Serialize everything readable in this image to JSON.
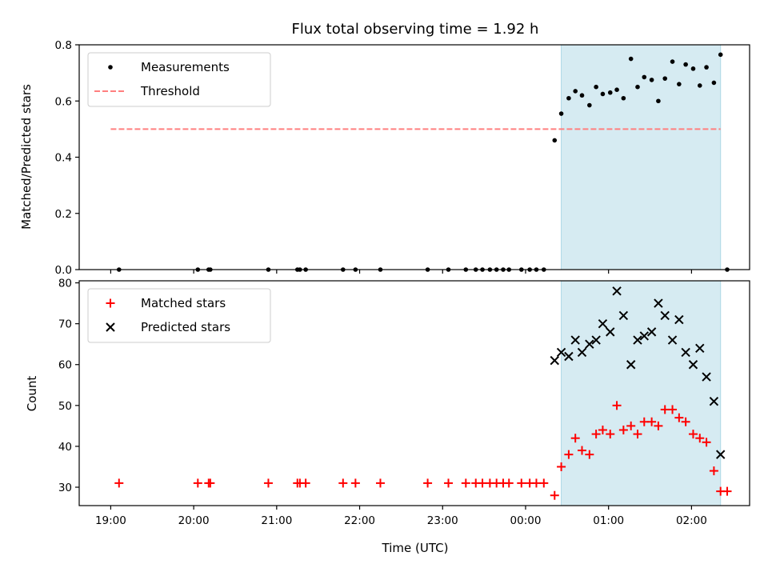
{
  "chart_data": [
    {
      "type": "scatter",
      "title": "Flux total observing time = 1.92 h",
      "xlabel": "",
      "ylabel": "Matched/Predicted stars",
      "ylim": [
        0,
        0.8
      ],
      "yticks": [
        "0.0",
        "0.2",
        "0.4",
        "0.6",
        "0.8"
      ],
      "xlim": [
        -0.38,
        7.7
      ],
      "legend_placement": "upper-left",
      "grid": false,
      "highlight_band": {
        "x": [
          5.43,
          7.35
        ],
        "color": "#add8e6"
      },
      "series": [
        {
          "name": "Measurements",
          "marker": "dot",
          "color": "#000000",
          "x": [
            0.1,
            1.05,
            1.18,
            1.2,
            1.9,
            2.25,
            2.28,
            2.35,
            2.8,
            2.95,
            3.25,
            3.82,
            4.07,
            4.28,
            4.4,
            4.48,
            4.57,
            4.65,
            4.73,
            4.8,
            4.95,
            5.05,
            5.13,
            5.22,
            5.35,
            5.43,
            5.52,
            5.6,
            5.68,
            5.77,
            5.85,
            5.93,
            6.02,
            6.1,
            6.18,
            6.27,
            6.35,
            6.43,
            6.52,
            6.6,
            6.68,
            6.77,
            6.85,
            6.93,
            7.02,
            7.1,
            7.18,
            7.27,
            7.35,
            7.43
          ],
          "y": [
            0,
            0,
            0,
            0,
            0,
            0,
            0,
            0,
            0,
            0,
            0,
            0,
            0,
            0,
            0,
            0,
            0,
            0,
            0,
            0,
            0,
            0,
            0,
            0,
            0.46,
            0.555,
            0.61,
            0.635,
            0.62,
            0.585,
            0.65,
            0.625,
            0.63,
            0.64,
            0.61,
            0.75,
            0.65,
            0.685,
            0.675,
            0.6,
            0.68,
            0.74,
            0.66,
            0.73,
            0.715,
            0.655,
            0.72,
            0.665,
            0.765,
            0
          ]
        },
        {
          "name": "Threshold",
          "marker": "dashed-line",
          "color": "#ff7f7f",
          "x": [
            0.0,
            7.35
          ],
          "y": [
            0.5,
            0.5
          ]
        }
      ]
    },
    {
      "type": "scatter",
      "title": "",
      "xlabel": "Time (UTC)",
      "ylabel": "Count",
      "ylim": [
        25.5,
        80.5
      ],
      "yticks": [
        "30",
        "40",
        "50",
        "60",
        "70",
        "80"
      ],
      "xlim": [
        -0.38,
        7.7
      ],
      "xticks": [
        "19:00",
        "20:00",
        "21:00",
        "22:00",
        "23:00",
        "00:00",
        "01:00",
        "02:00"
      ],
      "legend_placement": "upper-left",
      "grid": false,
      "highlight_band": {
        "x": [
          5.43,
          7.35
        ],
        "color": "#add8e6"
      },
      "series": [
        {
          "name": "Matched stars",
          "marker": "plus",
          "color": "#ff0000",
          "x": [
            0.1,
            1.05,
            1.18,
            1.2,
            1.9,
            2.25,
            2.28,
            2.35,
            2.8,
            2.95,
            3.25,
            3.82,
            4.07,
            4.28,
            4.4,
            4.48,
            4.57,
            4.65,
            4.73,
            4.8,
            4.95,
            5.05,
            5.13,
            5.22,
            5.35,
            5.43,
            5.52,
            5.6,
            5.68,
            5.77,
            5.85,
            5.93,
            6.02,
            6.1,
            6.18,
            6.27,
            6.35,
            6.43,
            6.52,
            6.6,
            6.68,
            6.77,
            6.85,
            6.93,
            7.02,
            7.1,
            7.18,
            7.27,
            7.35,
            7.43
          ],
          "y": [
            31,
            31,
            31,
            31,
            31,
            31,
            31,
            31,
            31,
            31,
            31,
            31,
            31,
            31,
            31,
            31,
            31,
            31,
            31,
            31,
            31,
            31,
            31,
            31,
            28,
            35,
            38,
            42,
            39,
            38,
            43,
            44,
            43,
            50,
            44,
            45,
            43,
            46,
            46,
            45,
            49,
            49,
            47,
            46,
            43,
            42,
            41,
            34,
            29,
            29
          ]
        },
        {
          "name": "Predicted stars",
          "marker": "x",
          "color": "#000000",
          "x": [
            5.35,
            5.43,
            5.52,
            5.6,
            5.68,
            5.77,
            5.85,
            5.93,
            6.02,
            6.1,
            6.18,
            6.27,
            6.35,
            6.43,
            6.52,
            6.6,
            6.68,
            6.77,
            6.85,
            6.93,
            7.02,
            7.1,
            7.18,
            7.27,
            7.35
          ],
          "y": [
            61,
            63,
            62,
            66,
            63,
            65,
            66,
            70,
            68,
            78,
            72,
            60,
            66,
            67,
            68,
            75,
            72,
            66,
            71,
            63,
            60,
            64,
            57,
            51,
            38
          ]
        }
      ]
    }
  ]
}
